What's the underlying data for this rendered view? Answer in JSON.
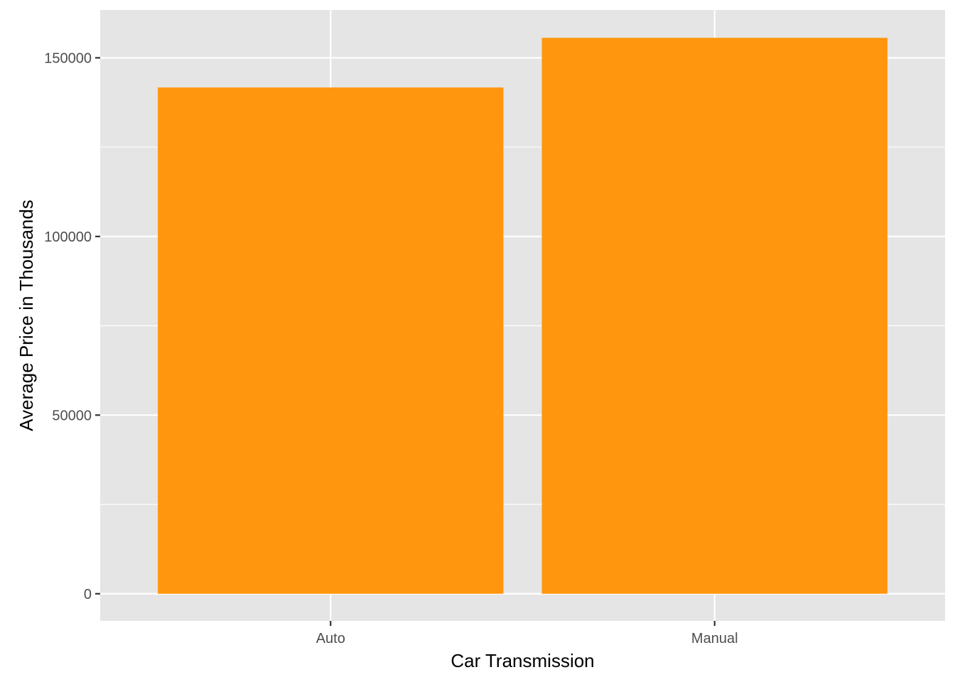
{
  "chart_data": {
    "type": "bar",
    "categories": [
      "Auto",
      "Manual"
    ],
    "values": [
      141700,
      155600
    ],
    "xlabel": "Car Transmission",
    "ylabel": "Average Price in Thousands",
    "ylim": [
      -7600,
      163400
    ],
    "yticks": [
      0,
      50000,
      100000,
      150000
    ],
    "grid": true,
    "colors": {
      "bar": "#FF960D",
      "panel": "#E5E5E5",
      "grid": "#FFFFFF",
      "tick": "#4D4D4D"
    }
  }
}
